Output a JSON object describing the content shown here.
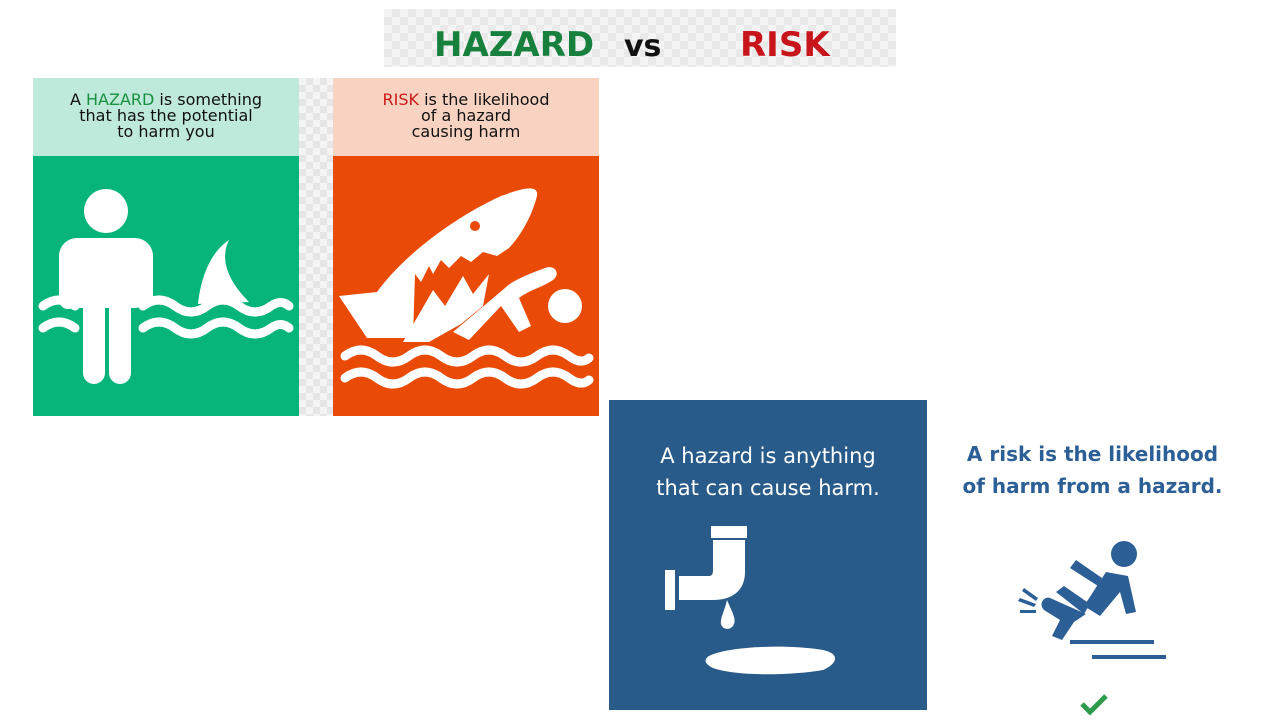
{
  "title": {
    "hazard": "HAZARD",
    "vs": "vs",
    "risk": "RISK"
  },
  "hazard_panel": {
    "line1_pre": "A ",
    "line1_keyword": "HAZARD",
    "line1_post": " is something",
    "line2": "that has the potential",
    "line3": "to harm you",
    "icon": "person-and-shark-fin-icon"
  },
  "risk_panel": {
    "line1_keyword": "RISK",
    "line1_post": " is the likelihood",
    "line2": "of a hazard",
    "line3": "causing harm",
    "icon": "shark-attacking-swimmer-icon"
  },
  "hazard_card": {
    "line1": "A hazard is anything",
    "line2": "that can cause harm.",
    "icon": "leaking-pipe-puddle-icon"
  },
  "risk_card": {
    "line1": "A risk is the likelihood",
    "line2": "of harm from a hazard.",
    "icon": "person-slipping-icon"
  },
  "colors": {
    "hazard_green": "#07b47a",
    "risk_orange": "#e94a06",
    "card_blue": "#285b8a",
    "risk_text_blue": "#2d5f97"
  }
}
